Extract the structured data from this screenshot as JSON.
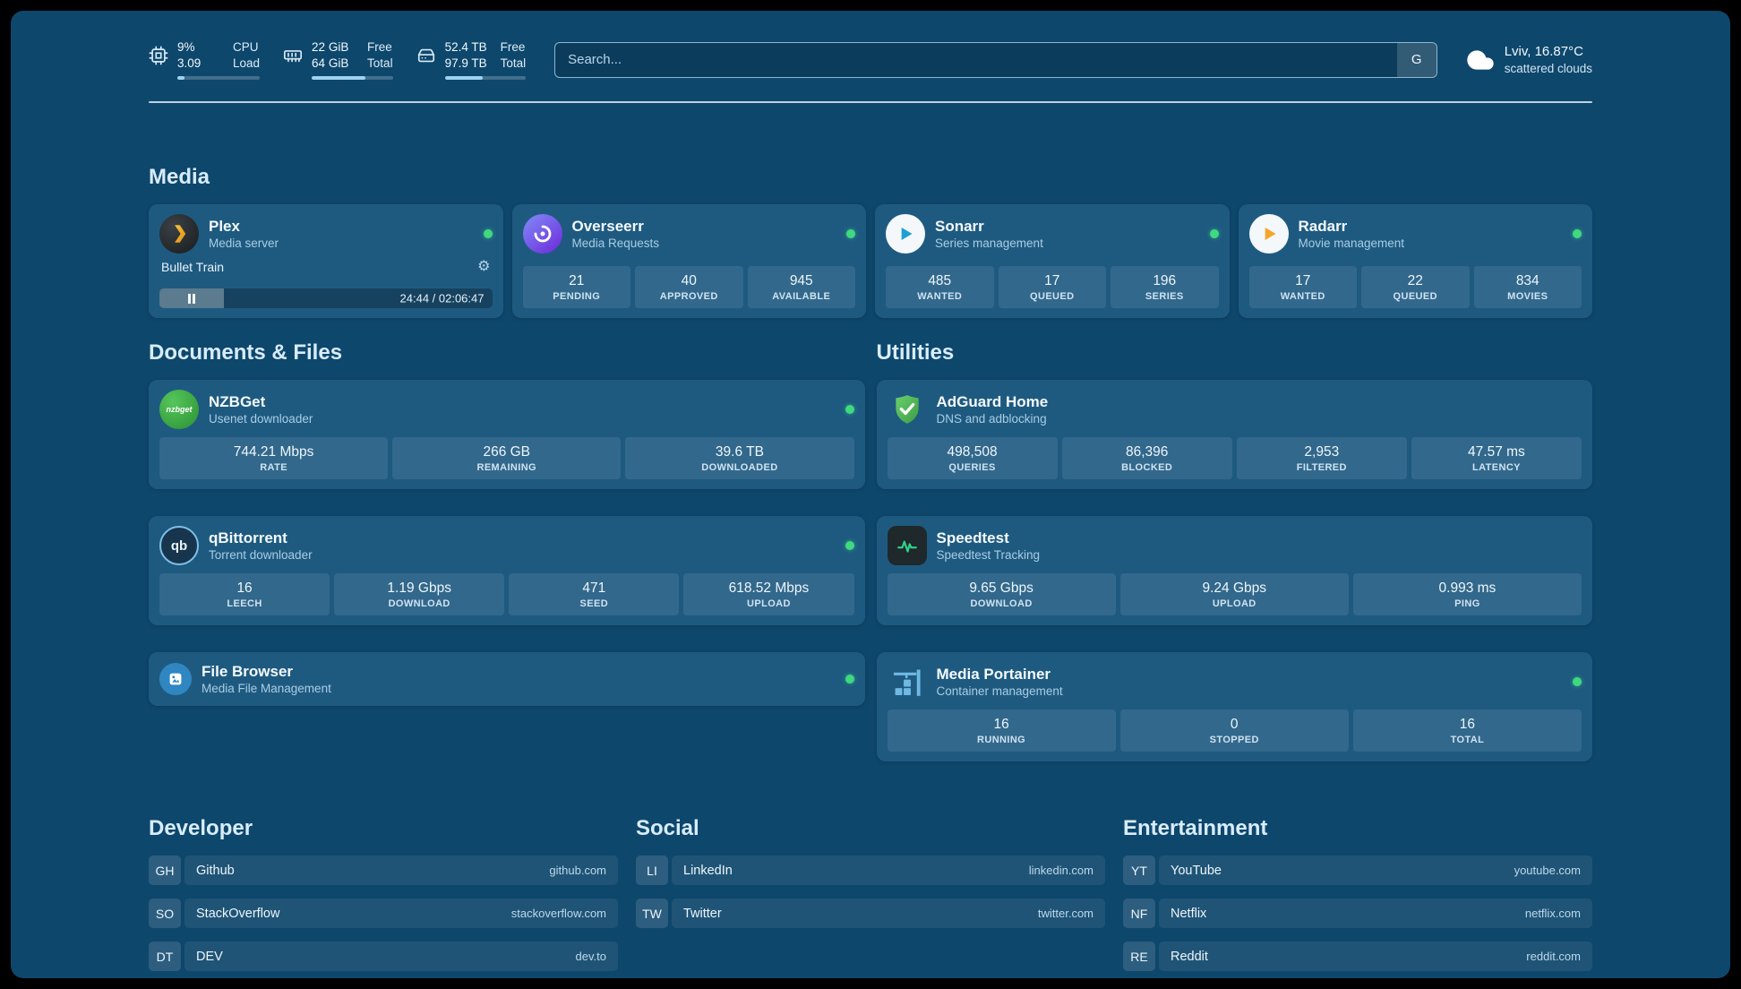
{
  "theme": {
    "background": "#0e476c",
    "card": "#1e5a80",
    "accent_green": "#3fd97f"
  },
  "topbar": {
    "cpu": {
      "value_top": "9%",
      "value_bottom": "3.09",
      "label_top": "CPU",
      "label_bottom": "Load",
      "bar_percent": 9
    },
    "memory": {
      "value_top": "22 GiB",
      "value_bottom": "64 GiB",
      "label_top": "Free",
      "label_bottom": "Total",
      "bar_percent": 66
    },
    "disk": {
      "value_top": "52.4 TB",
      "value_bottom": "97.9 TB",
      "label_top": "Free",
      "label_bottom": "Total",
      "bar_percent": 47
    },
    "search": {
      "placeholder": "Search...",
      "provider_label": "G"
    },
    "weather": {
      "location": "Lviv, 16.87°C",
      "condition": "scattered clouds"
    }
  },
  "sections": {
    "media": {
      "title": "Media"
    },
    "documents": {
      "title": "Documents & Files"
    },
    "utilities": {
      "title": "Utilities"
    }
  },
  "services": {
    "plex": {
      "name": "Plex",
      "subtitle": "Media server",
      "status": "online",
      "now_playing": {
        "title": "Bullet Train",
        "time": "24:44 / 02:06:47",
        "progress_percent": 19.5
      }
    },
    "overseerr": {
      "name": "Overseerr",
      "subtitle": "Media Requests",
      "status": "online",
      "stats": [
        {
          "value": "21",
          "label": "PENDING"
        },
        {
          "value": "40",
          "label": "APPROVED"
        },
        {
          "value": "945",
          "label": "AVAILABLE"
        }
      ]
    },
    "sonarr": {
      "name": "Sonarr",
      "subtitle": "Series management",
      "status": "online",
      "stats": [
        {
          "value": "485",
          "label": "WANTED"
        },
        {
          "value": "17",
          "label": "QUEUED"
        },
        {
          "value": "196",
          "label": "SERIES"
        }
      ]
    },
    "radarr": {
      "name": "Radarr",
      "subtitle": "Movie management",
      "status": "online",
      "stats": [
        {
          "value": "17",
          "label": "WANTED"
        },
        {
          "value": "22",
          "label": "QUEUED"
        },
        {
          "value": "834",
          "label": "MOVIES"
        }
      ]
    },
    "nzbget": {
      "name": "NZBGet",
      "subtitle": "Usenet downloader",
      "status": "online",
      "icon_text": "nzbget",
      "stats": [
        {
          "value": "744.21 Mbps",
          "label": "RATE"
        },
        {
          "value": "266 GB",
          "label": "REMAINING"
        },
        {
          "value": "39.6 TB",
          "label": "DOWNLOADED"
        }
      ]
    },
    "qbittorrent": {
      "name": "qBittorrent",
      "subtitle": "Torrent downloader",
      "status": "online",
      "icon_text": "qb",
      "stats": [
        {
          "value": "16",
          "label": "LEECH"
        },
        {
          "value": "1.19 Gbps",
          "label": "DOWNLOAD"
        },
        {
          "value": "471",
          "label": "SEED"
        },
        {
          "value": "618.52 Mbps",
          "label": "UPLOAD"
        }
      ]
    },
    "filebrowser": {
      "name": "File Browser",
      "subtitle": "Media File Management",
      "status": "online"
    },
    "adguard": {
      "name": "AdGuard Home",
      "subtitle": "DNS and adblocking",
      "stats": [
        {
          "value": "498,508",
          "label": "QUERIES"
        },
        {
          "value": "86,396",
          "label": "BLOCKED"
        },
        {
          "value": "2,953",
          "label": "FILTERED"
        },
        {
          "value": "47.57 ms",
          "label": "LATENCY"
        }
      ]
    },
    "speedtest": {
      "name": "Speedtest",
      "subtitle": "Speedtest Tracking",
      "stats": [
        {
          "value": "9.65 Gbps",
          "label": "DOWNLOAD"
        },
        {
          "value": "9.24 Gbps",
          "label": "UPLOAD"
        },
        {
          "value": "0.993 ms",
          "label": "PING"
        }
      ]
    },
    "portainer": {
      "name": "Media Portainer",
      "subtitle": "Container management",
      "status": "online",
      "stats": [
        {
          "value": "16",
          "label": "RUNNING"
        },
        {
          "value": "0",
          "label": "STOPPED"
        },
        {
          "value": "16",
          "label": "TOTAL"
        }
      ]
    }
  },
  "bookmarks": [
    {
      "title": "Developer",
      "items": [
        {
          "abbr": "GH",
          "name": "Github",
          "url": "github.com"
        },
        {
          "abbr": "SO",
          "name": "StackOverflow",
          "url": "stackoverflow.com"
        },
        {
          "abbr": "DT",
          "name": "DEV",
          "url": "dev.to"
        }
      ]
    },
    {
      "title": "Social",
      "items": [
        {
          "abbr": "LI",
          "name": "LinkedIn",
          "url": "linkedin.com"
        },
        {
          "abbr": "TW",
          "name": "Twitter",
          "url": "twitter.com"
        }
      ]
    },
    {
      "title": "Entertainment",
      "items": [
        {
          "abbr": "YT",
          "name": "YouTube",
          "url": "youtube.com"
        },
        {
          "abbr": "NF",
          "name": "Netflix",
          "url": "netflix.com"
        },
        {
          "abbr": "RE",
          "name": "Reddit",
          "url": "reddit.com"
        }
      ]
    }
  ]
}
